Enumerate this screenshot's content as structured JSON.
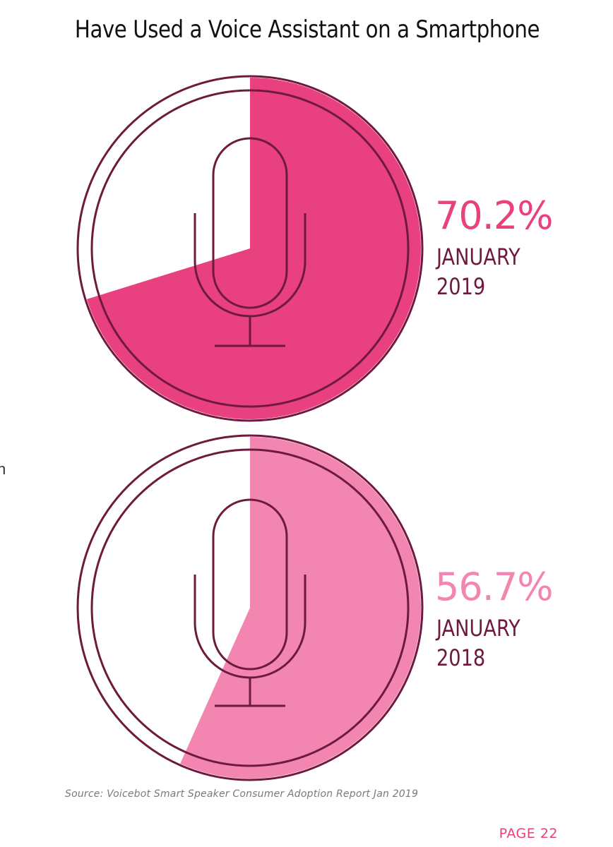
{
  "page_title": "Have Used a Voice Assistant on a Smartphone",
  "chart_data": [
    {
      "type": "pie",
      "title": "Have Used a Voice Assistant on a Smartphone",
      "value_label": "70.2%",
      "value": 70.2,
      "period_line1": "JANUARY",
      "period_line2": "2019",
      "fill_color": "#e9407f"
    },
    {
      "type": "pie",
      "title": "Have Used a Voice Assistant on a Smartphone",
      "value_label": "56.7%",
      "value": 56.7,
      "period_line1": "JANUARY",
      "period_line2": "2018",
      "fill_color": "#f286b0"
    }
  ],
  "colors": {
    "outline": "#6e1a3e",
    "pct_2019": "#e9407f",
    "pct_2018": "#f286b0",
    "page_number": "#e8407f"
  },
  "icons": [
    "microphone-icon",
    "microphone-icon"
  ],
  "source": "Source: Voicebot Smart Speaker Consumer Adoption Report Jan 2019",
  "page_number": "PAGE 22",
  "edge_text": "n"
}
